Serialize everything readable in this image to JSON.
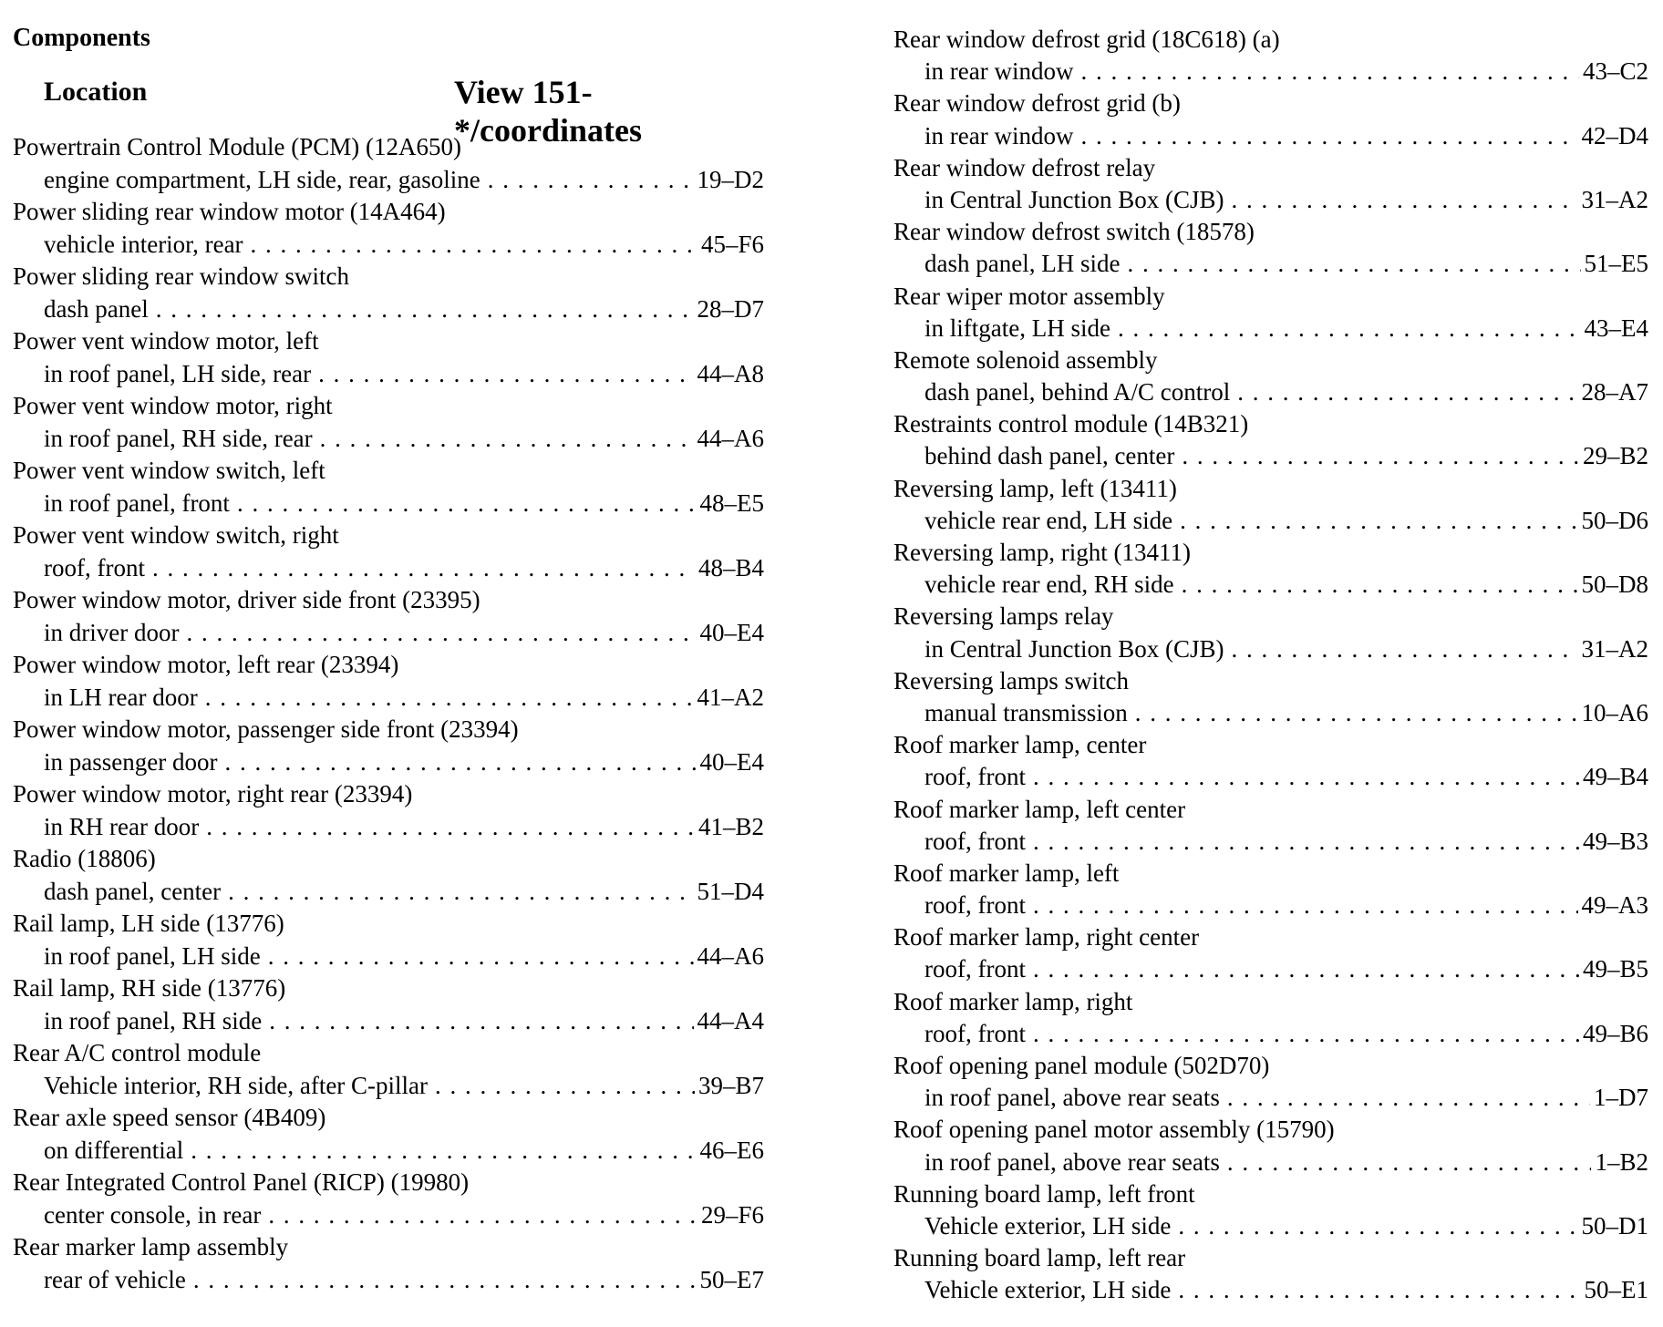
{
  "header": {
    "section": "Components",
    "location_label": "Location",
    "view_label": "View 151-*/coordinates"
  },
  "left_entries": [
    {
      "name": "Powertrain Control Module (PCM) (12A650)",
      "location": "engine compartment, LH side, rear, gasoline",
      "code": "19–D2"
    },
    {
      "name": "Power sliding rear window motor (14A464)",
      "location": "vehicle interior, rear",
      "code": "45–F6"
    },
    {
      "name": "Power sliding rear window switch",
      "location": "dash panel",
      "code": "28–D7"
    },
    {
      "name": "Power vent window motor, left",
      "location": "in roof panel, LH side, rear",
      "code": "44–A8"
    },
    {
      "name": "Power vent window motor, right",
      "location": "in roof panel, RH side, rear",
      "code": "44–A6"
    },
    {
      "name": "Power vent window switch, left",
      "location": "in roof panel, front",
      "code": "48–E5"
    },
    {
      "name": "Power vent window switch, right",
      "location": "roof, front",
      "code": "48–B4"
    },
    {
      "name": "Power window motor, driver side front (23395)",
      "location": "in driver door",
      "code": "40–E4"
    },
    {
      "name": "Power window motor, left rear (23394)",
      "location": "in LH rear door",
      "code": "41–A2"
    },
    {
      "name": "Power window motor, passenger side front (23394)",
      "location": "in passenger door",
      "code": "40–E4"
    },
    {
      "name": "Power window motor, right rear (23394)",
      "location": "in RH rear door",
      "code": "41–B2"
    },
    {
      "name": "Radio (18806)",
      "location": "dash panel, center",
      "code": "51–D4"
    },
    {
      "name": "Rail lamp, LH side (13776)",
      "location": "in roof panel, LH side",
      "code": "44–A6"
    },
    {
      "name": "Rail lamp, RH side (13776)",
      "location": "in roof panel, RH side",
      "code": "44–A4"
    },
    {
      "name": "Rear A/C control module",
      "location": "Vehicle interior, RH side, after C-pillar",
      "code": "39–B7"
    },
    {
      "name": "Rear axle speed sensor (4B409)",
      "location": "on differential",
      "code": "46–E6"
    },
    {
      "name": "Rear Integrated Control Panel (RICP) (19980)",
      "location": "center console, in rear",
      "code": "29–F6"
    },
    {
      "name": "Rear marker lamp assembly",
      "location": "rear of vehicle",
      "code": "50–E7"
    }
  ],
  "right_entries": [
    {
      "name": "Rear window defrost grid (18C618) (a)",
      "location": "in rear window",
      "code": "43–C2"
    },
    {
      "name": "Rear window defrost grid (b)",
      "location": "in rear window",
      "code": "42–D4"
    },
    {
      "name": "Rear window defrost relay",
      "location": "in Central Junction Box (CJB)",
      "code": "31–A2"
    },
    {
      "name": "Rear window defrost switch (18578)",
      "location": "dash panel, LH side",
      "code": "51–E5"
    },
    {
      "name": "Rear wiper motor assembly",
      "location": "in liftgate, LH side",
      "code": "43–E4"
    },
    {
      "name": "Remote solenoid assembly",
      "location": "dash panel, behind A/C control",
      "code": "28–A7"
    },
    {
      "name": "Restraints control module (14B321)",
      "location": "behind dash panel, center",
      "code": "29–B2"
    },
    {
      "name": "Reversing lamp, left (13411)",
      "location": "vehicle rear end, LH side",
      "code": "50–D6"
    },
    {
      "name": "Reversing lamp, right (13411)",
      "location": "vehicle rear end, RH side",
      "code": "50–D8"
    },
    {
      "name": "Reversing lamps relay",
      "location": "in Central Junction Box (CJB)",
      "code": "31–A2"
    },
    {
      "name": "Reversing lamps switch",
      "location": "manual transmission",
      "code": "10–A6"
    },
    {
      "name": "Roof marker lamp, center",
      "location": "roof, front",
      "code": "49–B4"
    },
    {
      "name": "Roof marker lamp, left center",
      "location": "roof, front",
      "code": "49–B3"
    },
    {
      "name": "Roof marker lamp, left",
      "location": "roof, front",
      "code": "49–A3"
    },
    {
      "name": "Roof marker lamp, right center",
      "location": "roof, front",
      "code": "49–B5"
    },
    {
      "name": "Roof marker lamp, right",
      "location": "roof, front",
      "code": "49–B6"
    },
    {
      "name": "Roof opening panel module (502D70)",
      "location": "in roof panel, above rear seats",
      "code": "1–D7"
    },
    {
      "name": "Roof opening panel motor assembly (15790)",
      "location": "in roof panel, above rear seats",
      "code": "1–B2"
    },
    {
      "name": "Running board lamp, left front",
      "location": "Vehicle exterior, LH side",
      "code": "50–D1"
    },
    {
      "name": "Running board lamp, left rear",
      "location": "Vehicle exterior, LH side",
      "code": "50–E1"
    }
  ]
}
